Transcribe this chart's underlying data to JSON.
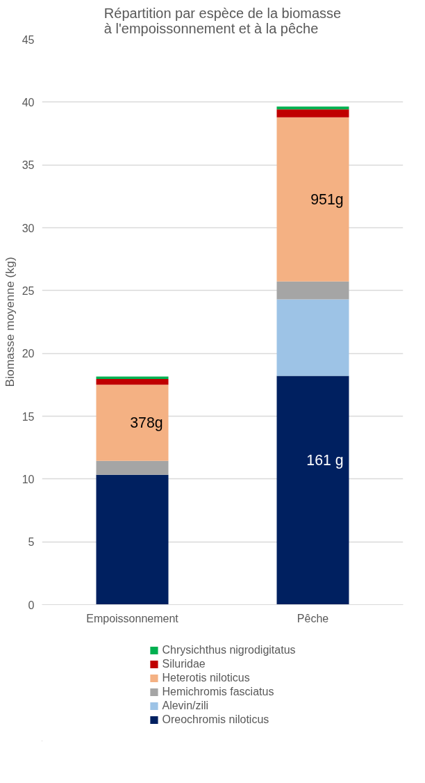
{
  "chart_data": {
    "type": "bar",
    "stacked": true,
    "title": "Répartition par espèce de la biomasse\nà l'empoissonnement et à la pêche",
    "ylabel": "Biomasse moyenne (kg)",
    "categories": [
      "Empoissonnement",
      "Pêche"
    ],
    "series": [
      {
        "name": "Oreochromis niloticus",
        "color": "#002060",
        "values": [
          10.34,
          18.21
        ]
      },
      {
        "name": "Alevin/zili",
        "color": "#9dc3e6",
        "values": [
          0,
          6.09
        ]
      },
      {
        "name": "Hemichromis fasciatus",
        "color": "#a5a5a5",
        "values": [
          1.1,
          1.42
        ]
      },
      {
        "name": "Heterotis niloticus",
        "color": "#f4b183",
        "values": [
          6.07,
          13.07
        ]
      },
      {
        "name": "Siluridae",
        "color": "#c00000",
        "values": [
          0.45,
          0.63
        ]
      },
      {
        "name": "Chrysichthus nigrodigitatus",
        "color": "#00b050",
        "values": [
          0.19,
          0.22
        ]
      }
    ],
    "annotations": [
      "378g",
      "951g",
      "161 g"
    ],
    "ylim": [
      0,
      45
    ],
    "yticks": [
      0,
      5,
      10,
      15,
      20,
      25,
      30,
      35,
      40,
      45
    ],
    "grid": "y",
    "legend": "bottom"
  }
}
